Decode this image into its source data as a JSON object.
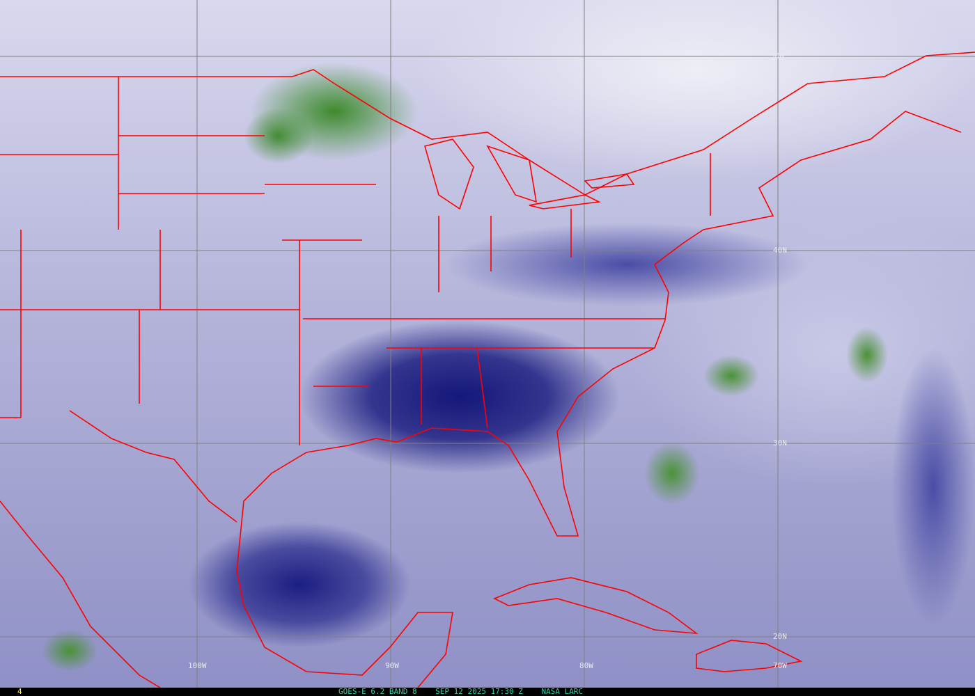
{
  "map": {
    "product": "GOES-E water vapor imagery",
    "colors": {
      "boundaries": "#ff0000",
      "grid": "#808080",
      "moist": "#1a1c80",
      "dry": "#e8e8f4",
      "high_cloud": "#3f8a2e",
      "caption": "#30d0b0",
      "frame_number": "#ffff40"
    },
    "lat_labels": [
      "50N",
      "40N",
      "30N",
      "20N"
    ],
    "lon_labels": [
      "100W",
      "90W",
      "80W",
      "70W"
    ]
  },
  "footer": {
    "frame_number": "4",
    "satellite": "GOES-E 6.2 BAND 8",
    "datetime": "SEP 12 2025 17:30 Z",
    "source": "NASA LARC"
  }
}
